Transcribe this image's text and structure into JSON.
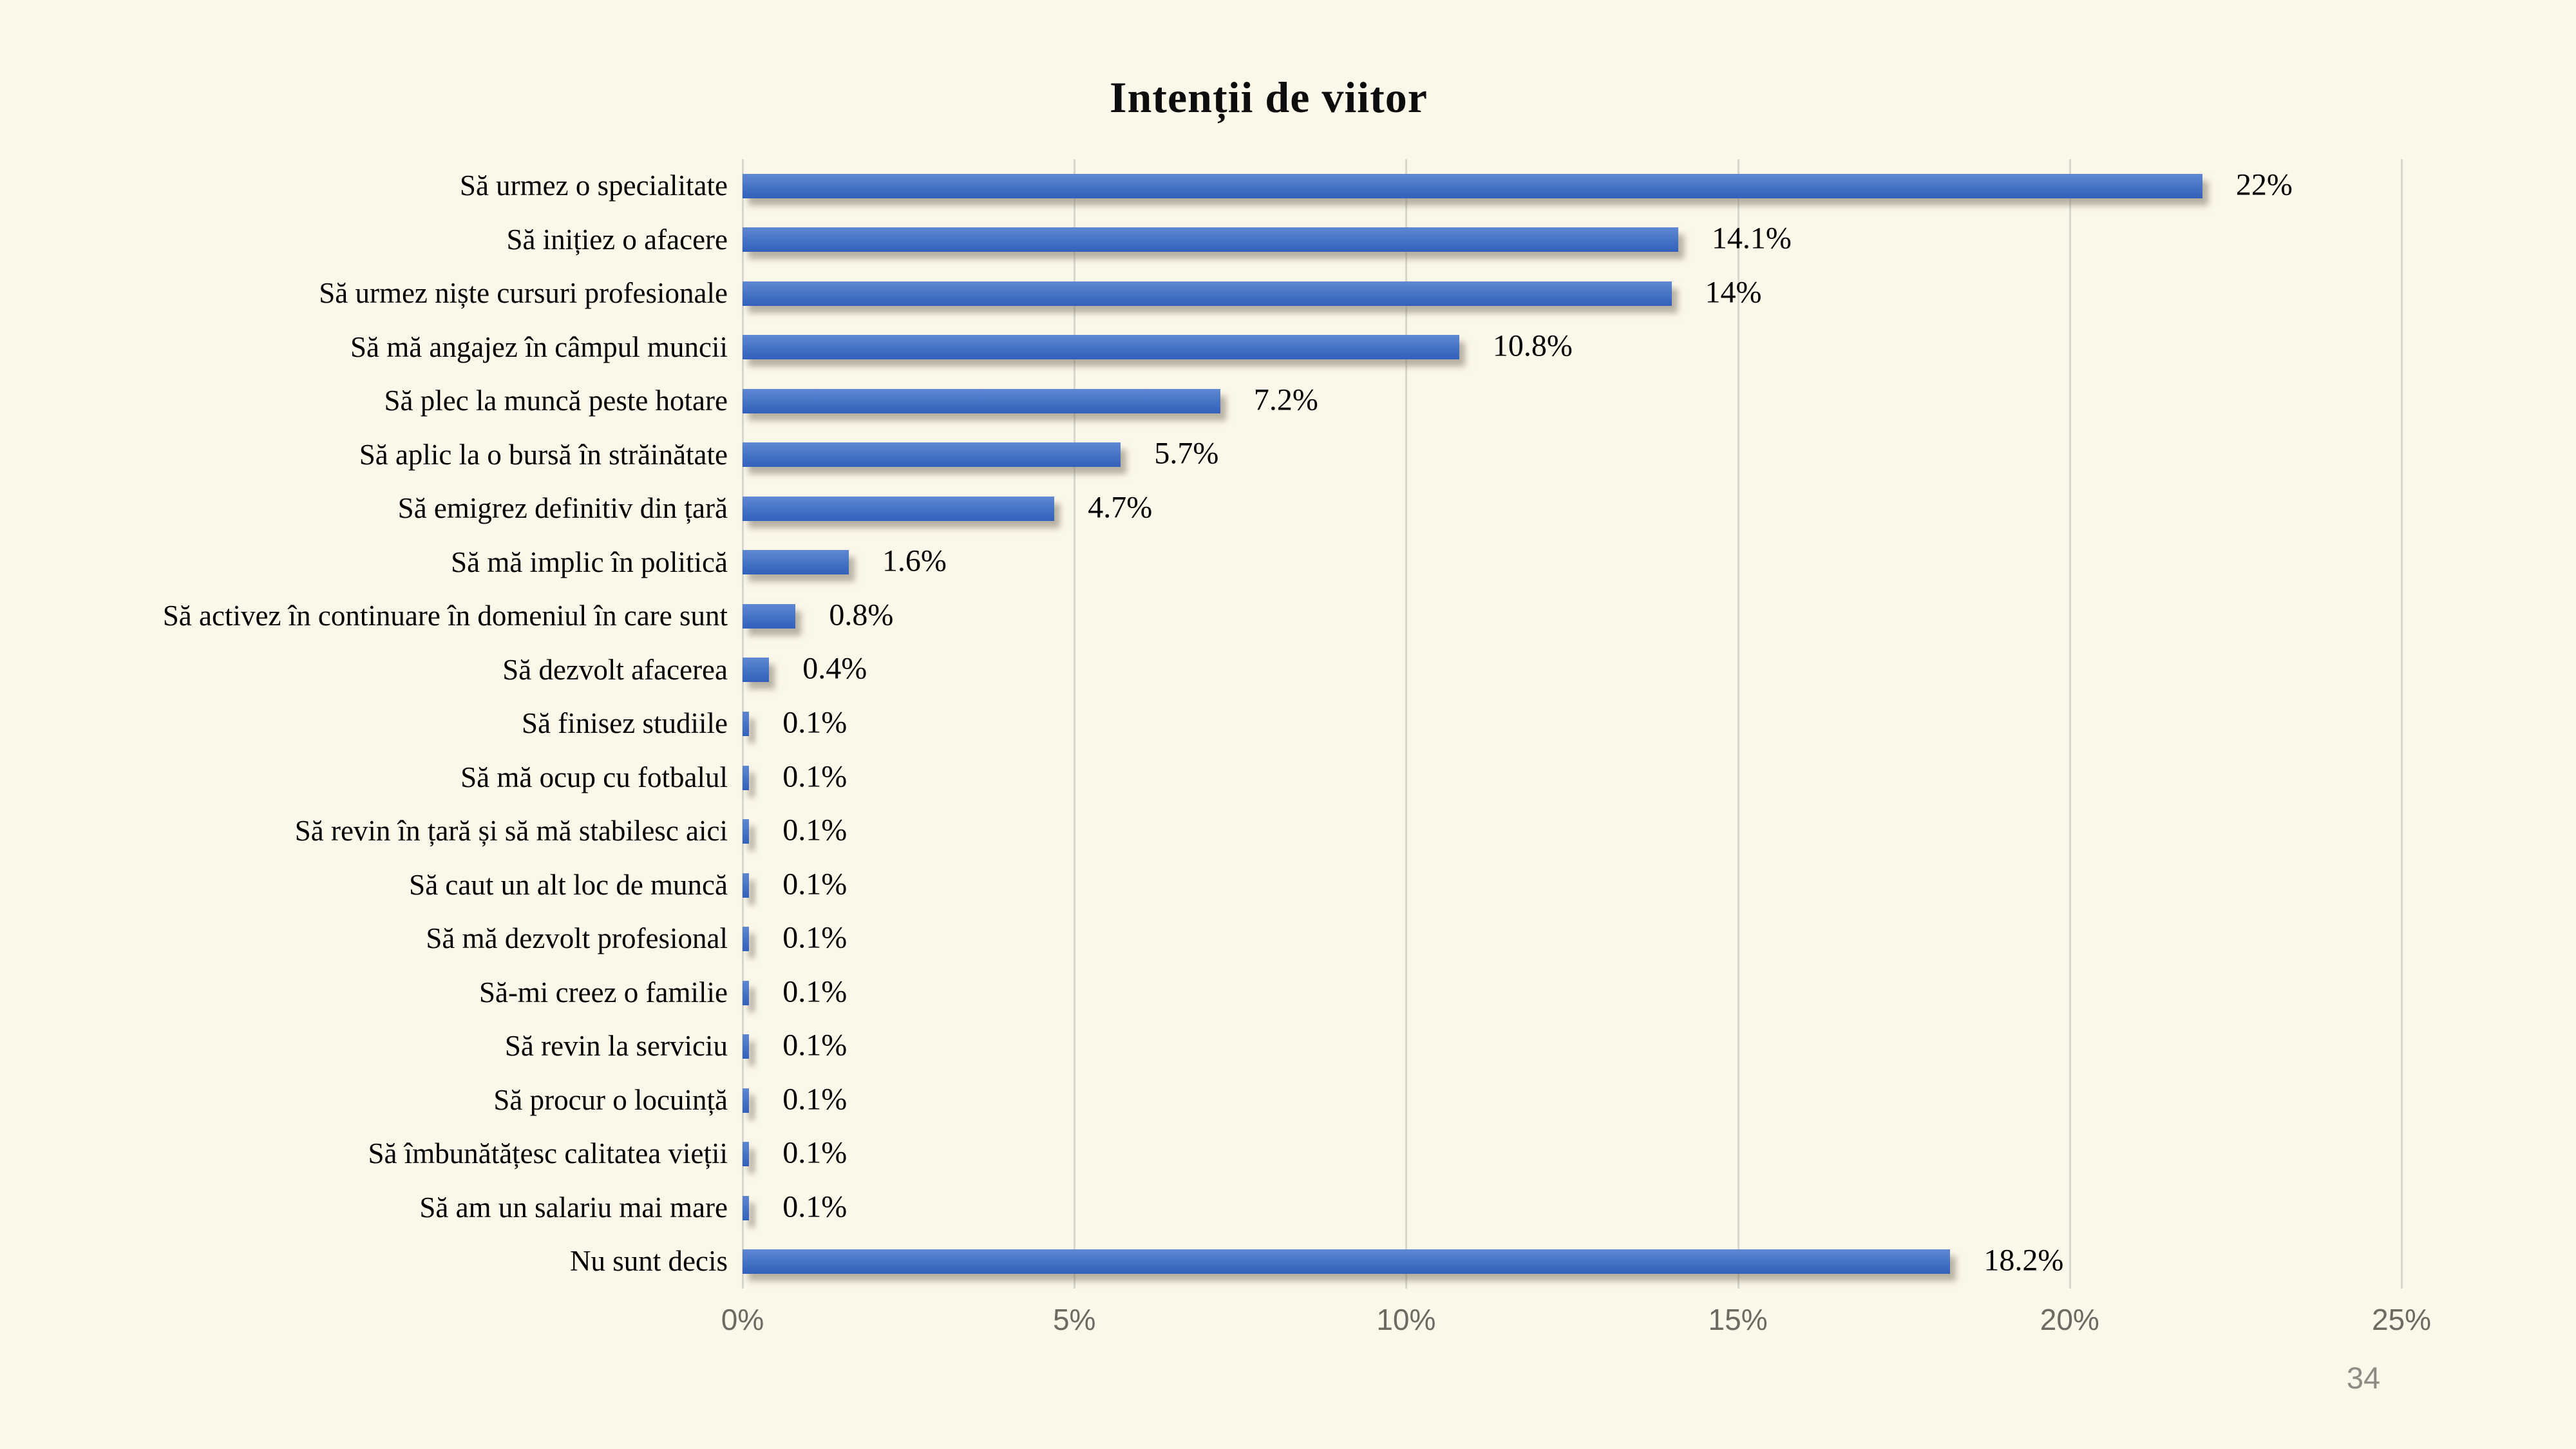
{
  "slide": {
    "background_color": "#FBF7E9",
    "page_number": "34"
  },
  "chart_data": {
    "type": "bar",
    "orientation": "horizontal",
    "title": "Intenții de viitor",
    "categories": [
      "Să urmez o specialitate",
      "Să inițiez o afacere",
      "Să urmez niște cursuri profesionale",
      "Să mă angajez în câmpul muncii",
      "Să plec la muncă peste hotare",
      "Să aplic la o bursă în străinătate",
      "Să emigrez definitiv din țară",
      "Să mă implic în politică",
      "Să activez în continuare în domeniul în care sunt",
      "Să dezvolt afacerea",
      "Să finisez studiile",
      "Să mă ocup cu fotbalul",
      "Să revin în țară și să mă stabilesc aici",
      "Să caut un alt loc de muncă",
      "Să mă dezvolt profesional",
      "Să-mi creez o familie",
      "Să revin la serviciu",
      "Să procur o locuință",
      "Să îmbunătățesc calitatea vieții",
      "Să am un salariu mai mare",
      "Nu sunt decis"
    ],
    "values": [
      22,
      14.1,
      14,
      10.8,
      7.2,
      5.7,
      4.7,
      1.6,
      0.8,
      0.4,
      0.1,
      0.1,
      0.1,
      0.1,
      0.1,
      0.1,
      0.1,
      0.1,
      0.1,
      0.1,
      18.2
    ],
    "value_labels": [
      "22%",
      "14.1%",
      "14%",
      "10.8%",
      "7.2%",
      "5.7%",
      "4.7%",
      "1.6%",
      "0.8%",
      "0.4%",
      "0.1%",
      "0.1%",
      "0.1%",
      "0.1%",
      "0.1%",
      "0.1%",
      "0.1%",
      "0.1%",
      "0.1%",
      "0.1%",
      "18.2%"
    ],
    "xlabel": "",
    "ylabel": "",
    "xlim": [
      0,
      25
    ],
    "x_ticks": [
      "0%",
      "5%",
      "10%",
      "15%",
      "20%",
      "25%"
    ],
    "grid": true,
    "legend": false,
    "bar_color": "#4472C4",
    "bar_gradient_top": "#6088D2",
    "bar_gradient_bottom": "#3261BC",
    "gridline_color": "#D9D6CC",
    "tick_label_color": "#6E6A63",
    "value_label_color": "#000000",
    "page_number_color": "#8F8B84"
  }
}
